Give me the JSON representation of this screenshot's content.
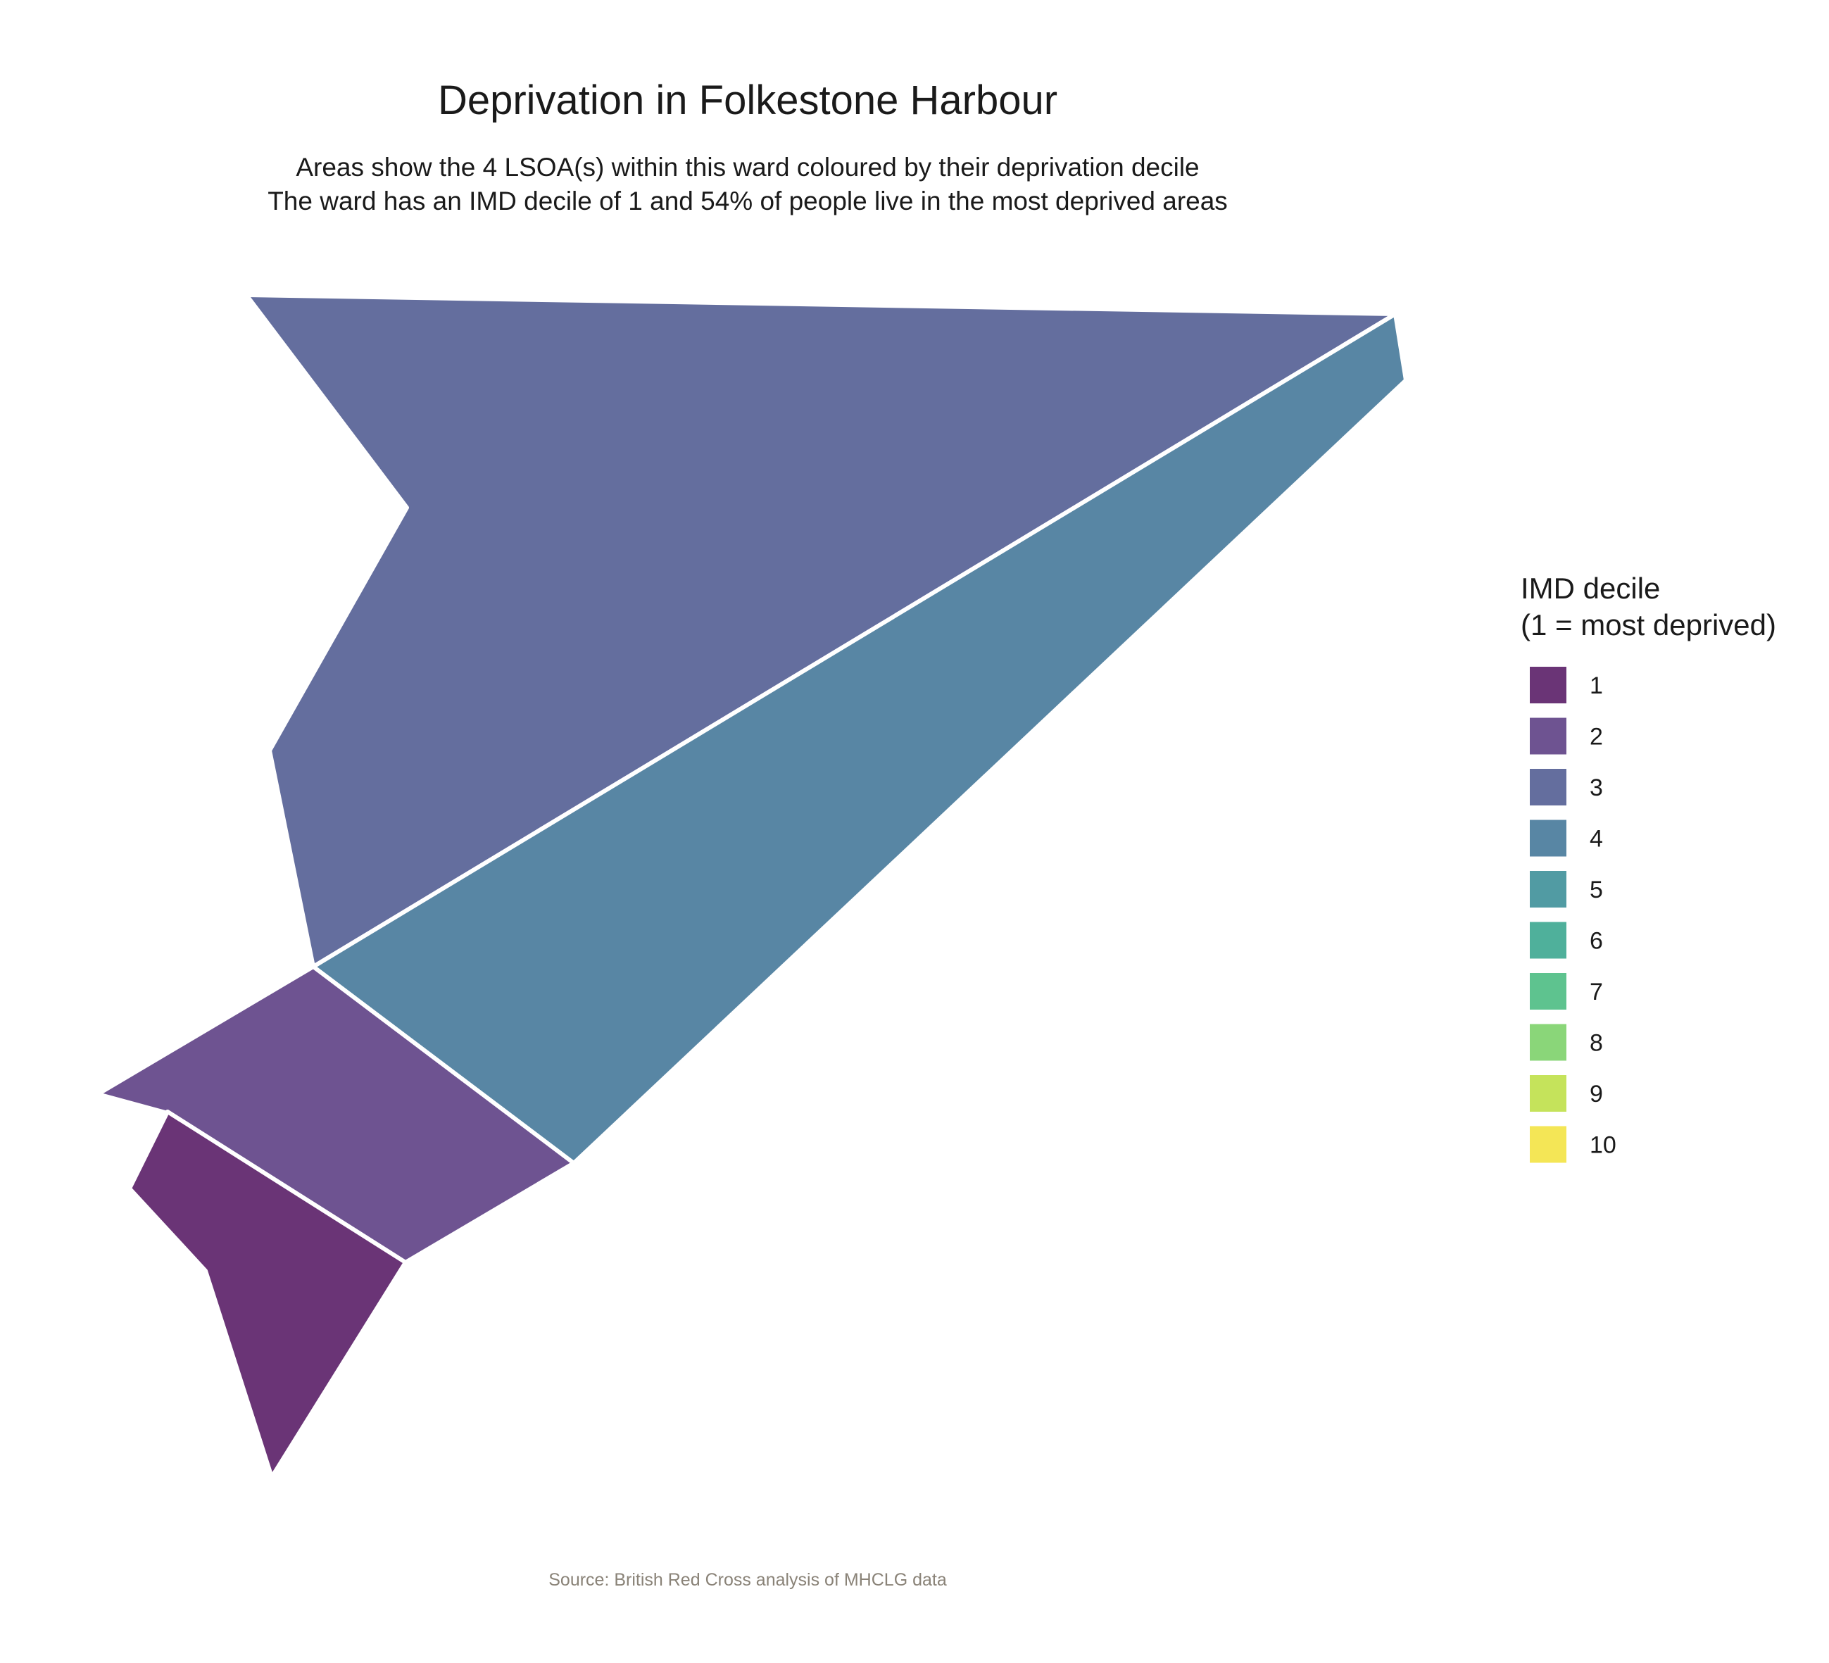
{
  "map": {
    "title": "Deprivation in Folkestone Harbour",
    "subtitle_lines": [
      "Areas show the 4 LSOA(s) within this ward coloured by their deprivation decile",
      "The ward has an IMD decile of 1 and 54% of people live in the most deprived areas"
    ],
    "caption": "Source: British Red Cross analysis of MHCLG data"
  },
  "legend": {
    "title_lines": [
      "IMD decile",
      "(1 = most deprived)"
    ],
    "items": [
      {
        "label": "1",
        "color": "#6a3476"
      },
      {
        "label": "2",
        "color": "#6e5391"
      },
      {
        "label": "3",
        "color": "#646e9e"
      },
      {
        "label": "4",
        "color": "#5886a4"
      },
      {
        "label": "5",
        "color": "#519ba3"
      },
      {
        "label": "6",
        "color": "#4fb09b"
      },
      {
        "label": "7",
        "color": "#5ec38f"
      },
      {
        "label": "8",
        "color": "#8ad679"
      },
      {
        "label": "9",
        "color": "#c5e35b"
      },
      {
        "label": "10",
        "color": "#f4e656"
      }
    ]
  },
  "areas": [
    {
      "id": "lsoa-a",
      "decile": 3,
      "color": "#646e9e"
    },
    {
      "id": "lsoa-b",
      "decile": 4,
      "color": "#5886a4"
    },
    {
      "id": "lsoa-c",
      "decile": 2,
      "color": "#6e5391"
    },
    {
      "id": "lsoa-d",
      "decile": 1,
      "color": "#6a3476"
    }
  ]
}
